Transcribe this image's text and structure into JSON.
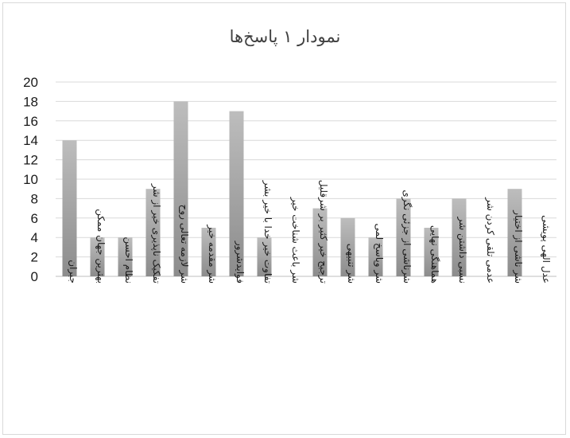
{
  "chart_data": {
    "type": "bar",
    "title": "نمودار ۱ پاسخ‌ها",
    "xlabel": "",
    "ylabel": "",
    "ylim": [
      0,
      20
    ],
    "yticks": [
      0,
      2,
      4,
      6,
      8,
      10,
      12,
      14,
      16,
      18,
      20
    ],
    "grid": true,
    "legend": "none",
    "categories": [
      "جبران",
      "بهترین جهان ممکن",
      "نظام احسن",
      "تفکیک ناپذیری خیر از شر",
      "شر لازمه تعالی روح",
      "شر مقدمه خیر",
      "فوایدشرور",
      "تفاوت خیر خدا با خیر بشر",
      "شر باعث شناخت خیر",
      "ترجیح خیر کثیر بر شرقلیل",
      "شر تنبیهی",
      "شر وپاسخ لمی",
      "شرناشی از جزئی نگری",
      "هماهنگی نهایی",
      "نسبی داشتن شر",
      "عدمی تلقی کردن شر",
      "شر ناشی از اختیار",
      "عدل الهی پویشی"
    ],
    "values": [
      14,
      4,
      4,
      9,
      18,
      5,
      17,
      4,
      0,
      7,
      6,
      4,
      8,
      5,
      8,
      0,
      9,
      0
    ],
    "colors": {
      "bar_top": "#bdbdbd",
      "bar_bottom": "#8c8c8c",
      "grid": "#d9d9d9",
      "axis": "#bfbfbf"
    }
  }
}
